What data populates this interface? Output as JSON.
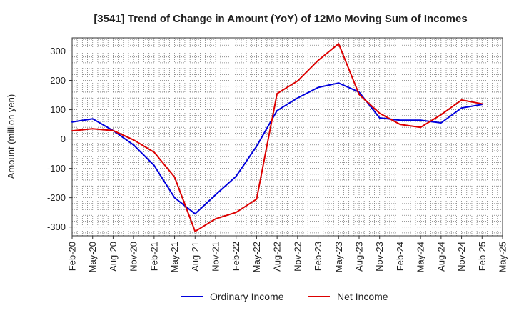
{
  "chart_data": {
    "type": "line",
    "title": "[3541]  Trend of Change in Amount (YoY) of 12Mo Moving Sum of Incomes",
    "xlabel": "",
    "ylabel": "Amount (million yen)",
    "categories": [
      "Feb-20",
      "May-20",
      "Aug-20",
      "Nov-20",
      "Feb-21",
      "May-21",
      "Aug-21",
      "Nov-21",
      "Feb-22",
      "May-22",
      "Aug-22",
      "Nov-22",
      "Feb-23",
      "May-23",
      "Aug-23",
      "Nov-23",
      "Feb-24",
      "May-24",
      "Aug-24",
      "Nov-24",
      "Feb-25",
      "May-25"
    ],
    "ylim": [
      -330,
      345
    ],
    "yticks": [
      300,
      200,
      100,
      0,
      -100,
      -200,
      -300
    ],
    "yticklabels": [
      "300",
      "200",
      "100",
      "0",
      "-100",
      "-200",
      "-300"
    ],
    "grid": true,
    "legend_position": "bottom-center",
    "series": [
      {
        "name": "Ordinary Income",
        "color": "#0000dd",
        "values": [
          58,
          69,
          29,
          -20,
          -90,
          -200,
          -255,
          -190,
          -127,
          -25,
          97,
          140,
          176,
          191,
          160,
          72,
          64,
          64,
          55,
          106,
          118,
          null
        ]
      },
      {
        "name": "Net Income",
        "color": "#dd0000",
        "values": [
          28,
          35,
          29,
          -3,
          -45,
          -130,
          -315,
          -272,
          -250,
          -205,
          155,
          198,
          268,
          325,
          152,
          88,
          50,
          40,
          83,
          133,
          120,
          null
        ]
      }
    ]
  }
}
